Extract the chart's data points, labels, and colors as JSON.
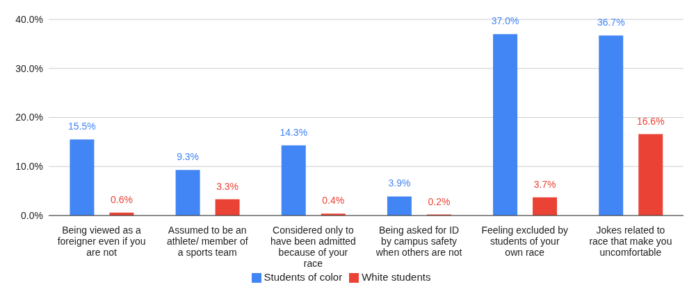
{
  "chart_data": {
    "type": "bar",
    "categories": [
      "Being viewed as a foreigner even if you are not",
      "Assumed to be an athlete/ member of a sports team",
      "Considered only to have been admitted because of your race",
      "Being asked for ID by campus safety when others are not",
      "Feeling excluded by students of your own race",
      "Jokes related to race that make you uncomfortable"
    ],
    "series": [
      {
        "name": "Students of color",
        "color": "#4285f4",
        "values": [
          15.5,
          9.3,
          14.3,
          3.9,
          37.0,
          36.7
        ],
        "value_labels": [
          "15.5%",
          "9.3%",
          "14.3%",
          "3.9%",
          "37.0%",
          "36.7%"
        ]
      },
      {
        "name": "White students",
        "color": "#ea4335",
        "values": [
          0.6,
          3.3,
          0.4,
          0.2,
          3.7,
          16.6
        ],
        "value_labels": [
          "0.6%",
          "3.3%",
          "0.4%",
          "0.2%",
          "3.7%",
          "16.6%"
        ]
      }
    ],
    "ylim": [
      0,
      40
    ],
    "yticks": [
      {
        "value": 0,
        "label": "0.0%"
      },
      {
        "value": 10,
        "label": "10.0%"
      },
      {
        "value": 20,
        "label": "20.0%"
      },
      {
        "value": 30,
        "label": "30.0%"
      },
      {
        "value": 40,
        "label": "40.0%"
      }
    ],
    "grid": "y",
    "legend": "bottom"
  }
}
